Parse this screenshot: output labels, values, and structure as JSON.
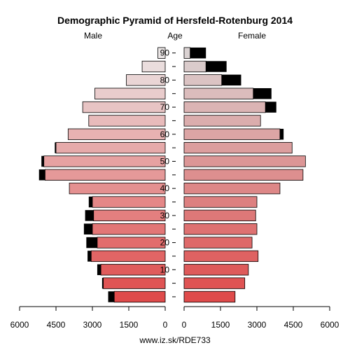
{
  "chart_data": {
    "type": "bar",
    "title": "Demographic Pyramid of Hersfeld-Rotenburg 2014",
    "male_label": "Male",
    "center_label": "Age",
    "female_label": "Female",
    "source": "www.iz.sk/RDE733",
    "age_groups": [
      "0-4",
      "5-9",
      "10-14",
      "15-19",
      "20-24",
      "25-29",
      "30-34",
      "35-39",
      "40-44",
      "45-49",
      "50-54",
      "55-59",
      "60-64",
      "65-69",
      "70-74",
      "75-79",
      "80-84",
      "85-89",
      "90+"
    ],
    "age_ticks": [
      "10",
      "20",
      "30",
      "40",
      "50",
      "60",
      "70",
      "80",
      "90"
    ],
    "x_ticks_male": [
      "6000",
      "4500",
      "3000",
      "1500",
      "0"
    ],
    "x_ticks_female": [
      "0",
      "1500",
      "3000",
      "4500",
      "6000"
    ],
    "xlim": [
      0,
      6000
    ],
    "series": [
      {
        "name": "Male",
        "values": [
          2100,
          2550,
          2650,
          3050,
          2800,
          3000,
          2950,
          3000,
          3950,
          4950,
          5000,
          4500,
          4000,
          3150,
          3400,
          2900,
          1600,
          950,
          300
        ]
      },
      {
        "name": "Male",
        "values": [
          250,
          50,
          150,
          150,
          450,
          350,
          350,
          150,
          0,
          250,
          100,
          50,
          0,
          0,
          0,
          0,
          0,
          0,
          0
        ]
      },
      {
        "name": "Female",
        "values": [
          2100,
          2500,
          2650,
          3050,
          2800,
          3000,
          2950,
          3000,
          3950,
          4900,
          5000,
          4450,
          3950,
          3150,
          3350,
          2850,
          1550,
          900,
          250
        ]
      },
      {
        "name": "Female",
        "values": [
          0,
          0,
          0,
          0,
          0,
          0,
          0,
          0,
          0,
          0,
          0,
          0,
          150,
          0,
          450,
          750,
          800,
          850,
          650
        ]
      }
    ]
  }
}
